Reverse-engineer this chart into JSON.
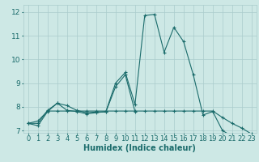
{
  "xlabel": "Humidex (Indice chaleur)",
  "xlim": [
    -0.5,
    23.5
  ],
  "ylim": [
    6.9,
    12.3
  ],
  "background_color": "#cde8e5",
  "grid_color": "#aacccc",
  "line_color": "#1a6b6b",
  "x": [
    0,
    1,
    2,
    3,
    4,
    5,
    6,
    7,
    8,
    9,
    10,
    11,
    12,
    13,
    14,
    15,
    16,
    17,
    18,
    19,
    20,
    21,
    22,
    23
  ],
  "line1": [
    7.3,
    7.2,
    7.8,
    8.15,
    7.85,
    7.8,
    7.7,
    7.75,
    7.8,
    9.0,
    9.45,
    8.1,
    11.85,
    11.9,
    10.3,
    11.35,
    10.75,
    9.35,
    7.65,
    7.8,
    7.0,
    6.75,
    6.65,
    6.6
  ],
  "line2": [
    7.3,
    7.3,
    7.85,
    8.15,
    8.05,
    7.85,
    7.75,
    7.78,
    7.78,
    8.85,
    9.35,
    7.8,
    null,
    null,
    null,
    null,
    null,
    null,
    null,
    null,
    null,
    null,
    null,
    null
  ],
  "line3": [
    7.3,
    7.4,
    7.82,
    7.82,
    7.82,
    7.82,
    7.82,
    7.82,
    7.82,
    7.82,
    7.82,
    7.82,
    7.82,
    7.82,
    7.82,
    7.82,
    7.82,
    7.82,
    7.82,
    7.82,
    7.55,
    7.3,
    7.1,
    6.85
  ],
  "xtick_labels": [
    "0",
    "1",
    "2",
    "3",
    "4",
    "5",
    "6",
    "7",
    "8",
    "9",
    "10",
    "11",
    "12",
    "13",
    "14",
    "15",
    "16",
    "17",
    "18",
    "19",
    "20",
    "21",
    "22",
    "23"
  ],
  "ytick_values": [
    7,
    8,
    9,
    10,
    11,
    12
  ],
  "fontsize_label": 6.5,
  "fontsize_tick": 6.0
}
